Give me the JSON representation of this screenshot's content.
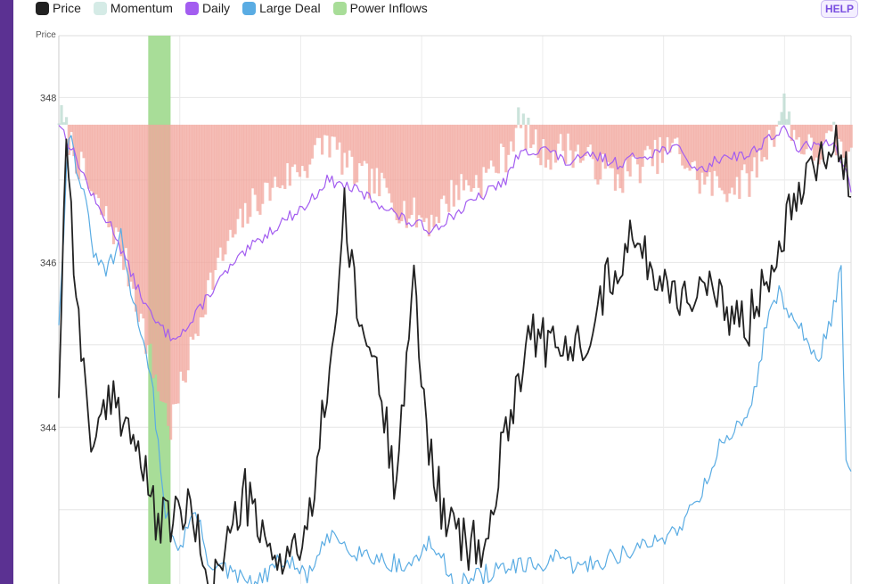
{
  "colors": {
    "sidebar": "#5b3192",
    "price": "#222222",
    "momentum_neg": "#f2a69c",
    "momentum_pos": "#b9d9cf",
    "daily": "#a35df0",
    "large_deal": "#5aace3",
    "power_inflows": "#a8dd98",
    "help_text": "#7a4fe0"
  },
  "legend": [
    {
      "label": "Price",
      "color": "#222222"
    },
    {
      "label": "Momentum",
      "color": "#d5ebe6"
    },
    {
      "label": "Daily",
      "color": "#a35df0"
    },
    {
      "label": "Large Deal",
      "color": "#5aace3"
    },
    {
      "label": "Power Inflows",
      "color": "#a8dd98"
    }
  ],
  "help_label": "HELP",
  "chart_data": {
    "type": "line",
    "ylabel": "Price",
    "y_ticks": [
      "348",
      "346",
      "344"
    ],
    "ylim": [
      342.1,
      348.75
    ],
    "x_count": 320,
    "grid": true,
    "legend_position": "top-left",
    "series": [
      {
        "name": "Price",
        "type": "line",
        "keypoints": [
          [
            0,
            344.5
          ],
          [
            3,
            347.6
          ],
          [
            8,
            345.2
          ],
          [
            14,
            343.7
          ],
          [
            22,
            344.4
          ],
          [
            30,
            343.9
          ],
          [
            40,
            342.8
          ],
          [
            52,
            343.0
          ],
          [
            62,
            342.1
          ],
          [
            75,
            343.2
          ],
          [
            85,
            342.4
          ],
          [
            100,
            342.6
          ],
          [
            112,
            345.5
          ],
          [
            115,
            346.6
          ],
          [
            120,
            345.4
          ],
          [
            128,
            344.7
          ],
          [
            135,
            343.4
          ],
          [
            143,
            345.7
          ],
          [
            148,
            344.0
          ],
          [
            155,
            342.9
          ],
          [
            163,
            342.6
          ],
          [
            172,
            342.5
          ],
          [
            180,
            344.0
          ],
          [
            190,
            345.2
          ],
          [
            200,
            344.9
          ],
          [
            210,
            345.0
          ],
          [
            220,
            345.7
          ],
          [
            230,
            346.3
          ],
          [
            240,
            345.9
          ],
          [
            250,
            345.6
          ],
          [
            260,
            345.7
          ],
          [
            268,
            345.4
          ],
          [
            278,
            345.3
          ],
          [
            288,
            346.1
          ],
          [
            297,
            346.9
          ],
          [
            305,
            347.3
          ],
          [
            313,
            347.5
          ],
          [
            319,
            346.8
          ]
        ]
      },
      {
        "name": "Momentum",
        "type": "bar",
        "baseline": 347.67,
        "keypoints": [
          [
            0,
            347.8
          ],
          [
            8,
            347.2
          ],
          [
            15,
            346.7
          ],
          [
            22,
            346.4
          ],
          [
            30,
            345.7
          ],
          [
            38,
            344.7
          ],
          [
            45,
            344.0
          ],
          [
            52,
            344.8
          ],
          [
            60,
            345.7
          ],
          [
            68,
            346.2
          ],
          [
            78,
            346.7
          ],
          [
            90,
            347.0
          ],
          [
            100,
            347.2
          ],
          [
            108,
            347.5
          ],
          [
            118,
            347.1
          ],
          [
            130,
            346.9
          ],
          [
            140,
            346.6
          ],
          [
            150,
            346.5
          ],
          [
            160,
            346.9
          ],
          [
            170,
            347.0
          ],
          [
            180,
            347.3
          ],
          [
            185,
            347.7
          ],
          [
            195,
            347.3
          ],
          [
            205,
            347.4
          ],
          [
            215,
            347.2
          ],
          [
            225,
            347.0
          ],
          [
            235,
            347.2
          ],
          [
            248,
            347.4
          ],
          [
            258,
            347.0
          ],
          [
            268,
            346.9
          ],
          [
            278,
            347.0
          ],
          [
            285,
            347.4
          ],
          [
            292,
            347.9
          ],
          [
            297,
            347.5
          ],
          [
            305,
            347.3
          ],
          [
            312,
            347.5
          ],
          [
            319,
            347.2
          ]
        ]
      },
      {
        "name": "Daily",
        "type": "line",
        "keypoints": [
          [
            0,
            347.7
          ],
          [
            8,
            347.2
          ],
          [
            15,
            346.7
          ],
          [
            22,
            346.4
          ],
          [
            30,
            345.8
          ],
          [
            38,
            345.3
          ],
          [
            45,
            345.1
          ],
          [
            52,
            345.2
          ],
          [
            60,
            345.6
          ],
          [
            68,
            345.9
          ],
          [
            78,
            346.2
          ],
          [
            90,
            346.5
          ],
          [
            100,
            346.7
          ],
          [
            108,
            347.0
          ],
          [
            118,
            346.9
          ],
          [
            130,
            346.7
          ],
          [
            140,
            346.5
          ],
          [
            150,
            346.4
          ],
          [
            160,
            346.6
          ],
          [
            170,
            346.8
          ],
          [
            180,
            347.0
          ],
          [
            185,
            347.3
          ],
          [
            195,
            347.4
          ],
          [
            205,
            347.2
          ],
          [
            215,
            347.3
          ],
          [
            225,
            347.2
          ],
          [
            235,
            347.3
          ],
          [
            248,
            347.4
          ],
          [
            258,
            347.1
          ],
          [
            268,
            347.3
          ],
          [
            278,
            347.3
          ],
          [
            285,
            347.5
          ],
          [
            292,
            347.6
          ],
          [
            297,
            347.4
          ],
          [
            305,
            347.4
          ],
          [
            312,
            347.5
          ],
          [
            319,
            346.9
          ]
        ]
      },
      {
        "name": "Large Deal",
        "type": "line",
        "keypoints": [
          [
            0,
            345.3
          ],
          [
            4,
            347.6
          ],
          [
            10,
            346.8
          ],
          [
            15,
            346.0
          ],
          [
            20,
            345.9
          ],
          [
            25,
            346.3
          ],
          [
            30,
            345.5
          ],
          [
            35,
            345.0
          ],
          [
            38,
            344.4
          ],
          [
            42,
            343.1
          ],
          [
            48,
            342.5
          ],
          [
            55,
            343.0
          ],
          [
            60,
            342.4
          ],
          [
            70,
            342.2
          ],
          [
            80,
            342.1
          ],
          [
            90,
            342.4
          ],
          [
            100,
            342.2
          ],
          [
            110,
            342.7
          ],
          [
            120,
            342.5
          ],
          [
            130,
            342.4
          ],
          [
            140,
            342.3
          ],
          [
            150,
            342.6
          ],
          [
            160,
            342.1
          ],
          [
            170,
            342.2
          ],
          [
            180,
            342.3
          ],
          [
            190,
            342.3
          ],
          [
            200,
            342.4
          ],
          [
            210,
            342.3
          ],
          [
            220,
            342.4
          ],
          [
            230,
            342.5
          ],
          [
            240,
            342.6
          ],
          [
            250,
            342.8
          ],
          [
            260,
            343.3
          ],
          [
            268,
            343.9
          ],
          [
            275,
            344.0
          ],
          [
            280,
            344.4
          ],
          [
            285,
            345.3
          ],
          [
            290,
            345.6
          ],
          [
            295,
            345.4
          ],
          [
            300,
            345.1
          ],
          [
            305,
            344.8
          ],
          [
            310,
            345.2
          ],
          [
            315,
            345.9
          ],
          [
            317,
            343.5
          ],
          [
            319,
            343.4
          ]
        ]
      },
      {
        "name": "Power Inflows",
        "type": "band",
        "x_range": [
          36,
          45
        ]
      }
    ]
  }
}
